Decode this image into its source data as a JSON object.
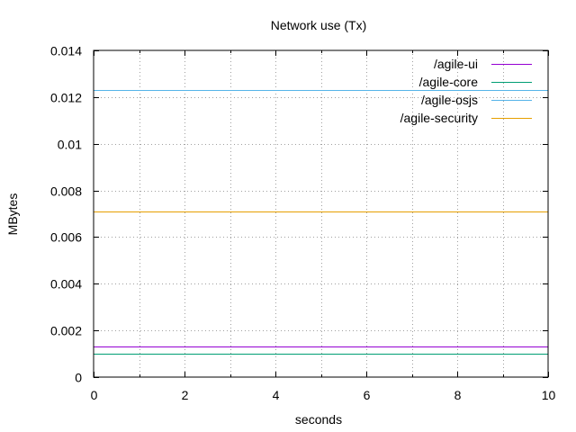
{
  "chart_data": {
    "type": "line",
    "title": "Network use (Tx)",
    "xlabel": "seconds",
    "ylabel": "MBytes",
    "xlim": [
      0,
      10
    ],
    "ylim": [
      0,
      0.014
    ],
    "x_ticks": [
      0,
      2,
      4,
      6,
      8,
      10
    ],
    "x_tick_labels": [
      "0",
      "2",
      "4",
      "6",
      "8",
      "10"
    ],
    "x_minor_grid": [
      1,
      3,
      5,
      7,
      9
    ],
    "y_ticks": [
      0,
      0.002,
      0.004,
      0.006,
      0.008,
      0.01,
      0.012,
      0.014
    ],
    "y_tick_labels": [
      "0",
      "0.002",
      "0.004",
      "0.006",
      "0.008",
      "0.01",
      "0.012",
      "0.014"
    ],
    "grid": true,
    "legend_position": "top-right",
    "series": [
      {
        "name": "/agile-ui",
        "color": "#9400d3",
        "x": [
          0,
          10
        ],
        "values": [
          0.0013,
          0.0013
        ]
      },
      {
        "name": "/agile-core",
        "color": "#009e73",
        "x": [
          0,
          10
        ],
        "values": [
          0.00102,
          0.00102
        ]
      },
      {
        "name": "/agile-osjs",
        "color": "#56b4e9",
        "x": [
          0,
          10
        ],
        "values": [
          0.0123,
          0.0123
        ]
      },
      {
        "name": "/agile-security",
        "color": "#e69f00",
        "x": [
          0,
          10
        ],
        "values": [
          0.00708,
          0.00708
        ]
      }
    ]
  }
}
